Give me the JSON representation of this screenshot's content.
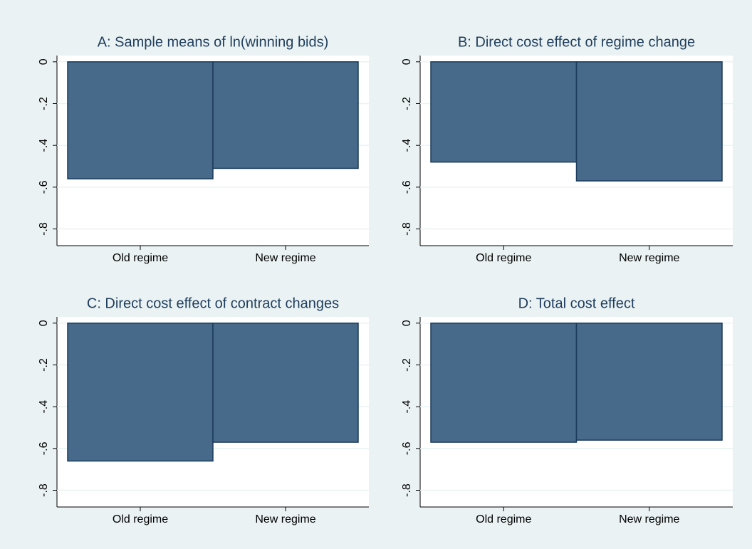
{
  "chart_data": [
    {
      "type": "bar",
      "title": "A: Sample means of ln(winning bids)",
      "categories": [
        "Old regime",
        "New regime"
      ],
      "values": [
        -0.56,
        -0.51
      ],
      "color": "#486a8a",
      "ylim": [
        -0.88,
        0.03
      ],
      "yticks": [
        0,
        {
          "value": -0.2,
          "label": "-.2"
        },
        {
          "value": -0.4,
          "label": "-.4"
        },
        {
          "value": -0.6,
          "label": "-.6"
        },
        {
          "value": -0.8,
          "label": "-.8"
        }
      ],
      "grid": true
    },
    {
      "type": "bar",
      "title": "B: Direct cost effect of regime change",
      "categories": [
        "Old regime",
        "New regime"
      ],
      "values": [
        -0.48,
        -0.57
      ],
      "color": "#486a8a",
      "ylim": [
        -0.88,
        0.03
      ],
      "yticks": [
        0,
        {
          "value": -0.2,
          "label": "-.2"
        },
        {
          "value": -0.4,
          "label": "-.4"
        },
        {
          "value": -0.6,
          "label": "-.6"
        },
        {
          "value": -0.8,
          "label": "-.8"
        }
      ],
      "grid": true
    },
    {
      "type": "bar",
      "title": "C: Direct cost effect of contract changes",
      "categories": [
        "Old regime",
        "New regime"
      ],
      "values": [
        -0.66,
        -0.57
      ],
      "color": "#486a8a",
      "ylim": [
        -0.88,
        0.03
      ],
      "yticks": [
        0,
        {
          "value": -0.2,
          "label": "-.2"
        },
        {
          "value": -0.4,
          "label": "-.4"
        },
        {
          "value": -0.6,
          "label": "-.6"
        },
        {
          "value": -0.8,
          "label": "-.8"
        }
      ],
      "grid": true
    },
    {
      "type": "bar",
      "title": "D: Total cost effect",
      "categories": [
        "Old regime",
        "New regime"
      ],
      "values": [
        -0.57,
        -0.56
      ],
      "color": "#486a8a",
      "ylim": [
        -0.88,
        0.03
      ],
      "yticks": [
        0,
        {
          "value": -0.2,
          "label": "-.2"
        },
        {
          "value": -0.4,
          "label": "-.4"
        },
        {
          "value": -0.6,
          "label": "-.6"
        },
        {
          "value": -0.8,
          "label": "-.8"
        }
      ],
      "grid": true
    }
  ]
}
